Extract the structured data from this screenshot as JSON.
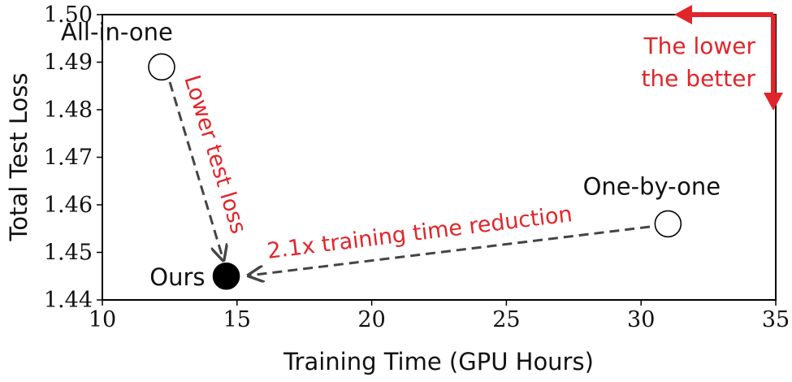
{
  "chart_data": {
    "type": "scatter",
    "xlabel": "Training Time (GPU Hours)",
    "ylabel": "Total Test Loss",
    "xlim": [
      10,
      35
    ],
    "ylim": [
      1.44,
      1.5
    ],
    "xticks": [
      "10",
      "15",
      "20",
      "25",
      "30",
      "35"
    ],
    "yticks": [
      "1.44",
      "1.45",
      "1.46",
      "1.47",
      "1.48",
      "1.49",
      "1.50"
    ],
    "grid": false,
    "points": [
      {
        "label": "All-in-one",
        "x": 12.2,
        "y": 1.489,
        "filled": false
      },
      {
        "label": "Ours",
        "x": 14.6,
        "y": 1.445,
        "filled": true
      },
      {
        "label": "One-by-one",
        "x": 31.0,
        "y": 1.456,
        "filled": false
      }
    ],
    "annotations": {
      "vertical_arrow": "Lower test loss",
      "horizontal_arrow": "2.1x training time reduction",
      "corner_line1": "The lower",
      "corner_line2": "the better"
    },
    "colors": {
      "accent": "#e0262b",
      "arrow": "#444444",
      "axis": "#000000"
    }
  }
}
